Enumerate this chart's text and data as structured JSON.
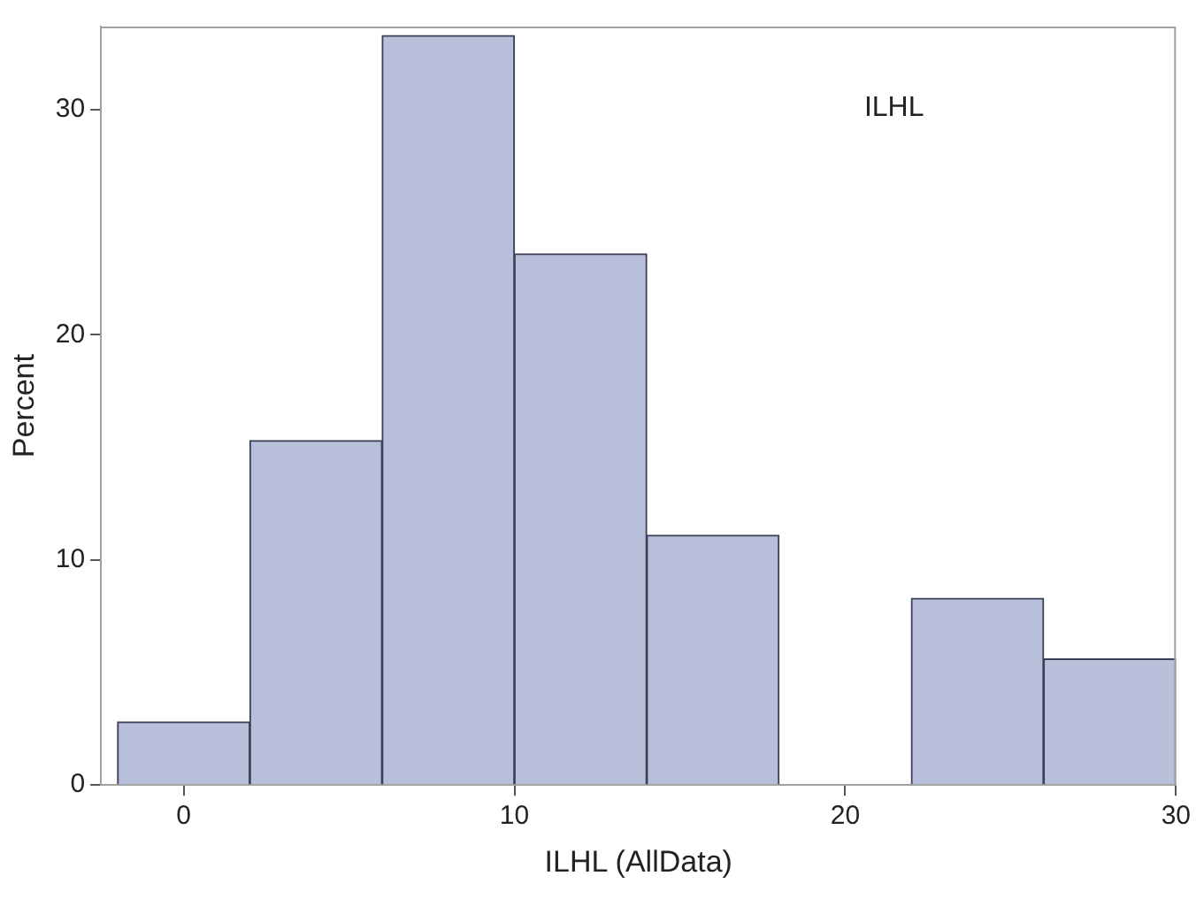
{
  "chart_data": {
    "type": "histogram",
    "xlabel": "ILHL (AllData)",
    "ylabel": "Percent",
    "annotations": [
      "ILHL"
    ],
    "bins": [
      -2,
      2,
      6,
      10,
      14,
      18,
      22,
      26,
      30
    ],
    "values": [
      2.8,
      15.3,
      33.3,
      23.6,
      11.1,
      0,
      8.3,
      5.6
    ],
    "color": "#b8bfdb",
    "xlim": [
      -2.5,
      30
    ],
    "ylim": [
      0,
      33.7
    ],
    "xticks": [
      0,
      10,
      20,
      30
    ],
    "yticks": [
      0,
      10,
      20,
      30
    ],
    "grid": false,
    "legend": false
  }
}
